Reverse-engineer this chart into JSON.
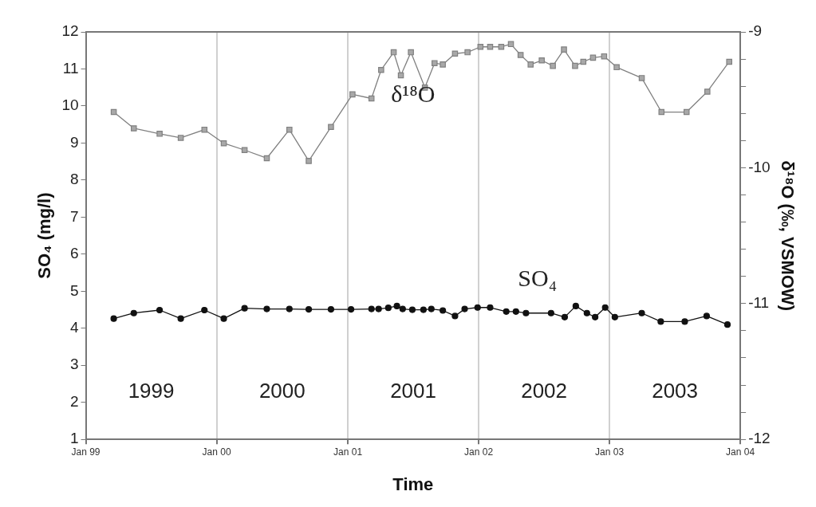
{
  "chart_data": {
    "type": "line",
    "xlabel": "Time",
    "ylabel": "SO₄ (mg/l)",
    "y2label": "δ¹⁸O (‰, VSMOW)",
    "xlim": [
      "1999-01-01",
      "2004-01-01"
    ],
    "xticks": [
      {
        "value": "1999-01",
        "label": "Jan 99"
      },
      {
        "value": "2000-01",
        "label": "Jan 00"
      },
      {
        "value": "2001-01",
        "label": "Jan 01"
      },
      {
        "value": "2002-01",
        "label": "Jan 02"
      },
      {
        "value": "2003-01",
        "label": "Jan 03"
      },
      {
        "value": "2004-01",
        "label": "Jan 04"
      }
    ],
    "ylim": [
      1,
      12
    ],
    "yticks": [
      1,
      2,
      3,
      4,
      5,
      6,
      7,
      8,
      9,
      10,
      11,
      12
    ],
    "y2lim": [
      -12,
      -9
    ],
    "y2ticks": [
      -12,
      {
        "value": -11.8,
        "label": null
      },
      {
        "value": -11.6,
        "label": null
      },
      {
        "value": -11.4,
        "label": null
      },
      {
        "value": -11.2,
        "label": null
      },
      -11,
      {
        "value": -10.8,
        "label": null
      },
      {
        "value": -10.6,
        "label": null
      },
      {
        "value": -10.4,
        "label": null
      },
      {
        "value": -10.2,
        "label": null
      },
      -10,
      {
        "value": -9.8,
        "label": null
      },
      {
        "value": -9.6,
        "label": null
      },
      {
        "value": -9.4,
        "label": null
      },
      {
        "value": -9.2,
        "label": null
      },
      -9
    ],
    "grid": "x",
    "legend": false,
    "series": [
      {
        "name": "δ¹⁸O",
        "color": "#808080",
        "marker": "square",
        "axis": "y2",
        "x": [
          "1999-03-20",
          "1999-05-15",
          "1999-07-26",
          "1999-09-23",
          "1999-11-28",
          "2000-01-21",
          "2000-03-19",
          "2000-05-20",
          "2000-07-22",
          "2000-09-14",
          "2000-11-15",
          "2001-01-14",
          "2001-03-08",
          "2001-04-04",
          "2001-05-09",
          "2001-05-29",
          "2001-06-26",
          "2001-08-04",
          "2001-08-31",
          "2001-09-23",
          "2001-10-27",
          "2001-12-01",
          "2002-01-06",
          "2002-02-02",
          "2002-03-05",
          "2002-04-01",
          "2002-04-28",
          "2002-05-26",
          "2002-06-26",
          "2002-07-27",
          "2002-08-27",
          "2002-09-27",
          "2002-10-20",
          "2002-11-16",
          "2002-12-17",
          "2003-01-21",
          "2003-04-01",
          "2003-05-26",
          "2003-08-04",
          "2003-10-01",
          "2003-12-01"
        ],
        "values": [
          -9.59,
          -9.71,
          -9.75,
          -9.78,
          -9.72,
          -9.82,
          -9.87,
          -9.93,
          -9.72,
          -9.95,
          -9.7,
          -9.46,
          -9.49,
          -9.28,
          -9.15,
          -9.32,
          -9.15,
          -9.41,
          -9.23,
          -9.24,
          -9.16,
          -9.15,
          -9.11,
          -9.11,
          -9.11,
          -9.09,
          -9.17,
          -9.24,
          -9.21,
          -9.25,
          -9.13,
          -9.25,
          -9.22,
          -9.19,
          -9.18,
          -9.26,
          -9.34,
          -9.59,
          -9.59,
          -9.44,
          -9.22
        ]
      },
      {
        "name": "SO₄",
        "color": "#111111",
        "marker": "circle",
        "x": [
          "1999-03-20",
          "1999-05-15",
          "1999-07-26",
          "1999-09-23",
          "1999-11-28",
          "2000-01-21",
          "2000-03-19",
          "2000-05-20",
          "2000-07-22",
          "2000-09-14",
          "2000-11-15",
          "2001-01-10",
          "2001-03-08",
          "2001-03-28",
          "2001-04-24",
          "2001-05-18",
          "2001-06-03",
          "2001-06-30",
          "2001-07-31",
          "2001-08-22",
          "2001-09-23",
          "2001-10-27",
          "2001-11-23",
          "2001-12-29",
          "2002-02-02",
          "2002-03-19",
          "2002-04-15",
          "2002-05-13",
          "2002-07-22",
          "2002-08-29",
          "2002-09-29",
          "2002-10-30",
          "2002-11-22",
          "2002-12-20",
          "2003-01-16",
          "2003-04-01",
          "2003-05-24",
          "2003-07-30",
          "2003-09-29",
          "2003-11-26"
        ],
        "values": [
          4.26,
          4.41,
          4.49,
          4.26,
          4.49,
          4.26,
          4.54,
          4.52,
          4.52,
          4.51,
          4.51,
          4.51,
          4.52,
          4.52,
          4.55,
          4.6,
          4.52,
          4.5,
          4.5,
          4.52,
          4.48,
          4.33,
          4.52,
          4.56,
          4.56,
          4.45,
          4.45,
          4.41,
          4.41,
          4.3,
          4.6,
          4.41,
          4.3,
          4.56,
          4.3,
          4.41,
          4.18,
          4.18,
          4.33,
          4.1
        ]
      }
    ],
    "annotations": [
      "1999",
      "2000",
      "2001",
      "2002",
      "2003"
    ]
  }
}
